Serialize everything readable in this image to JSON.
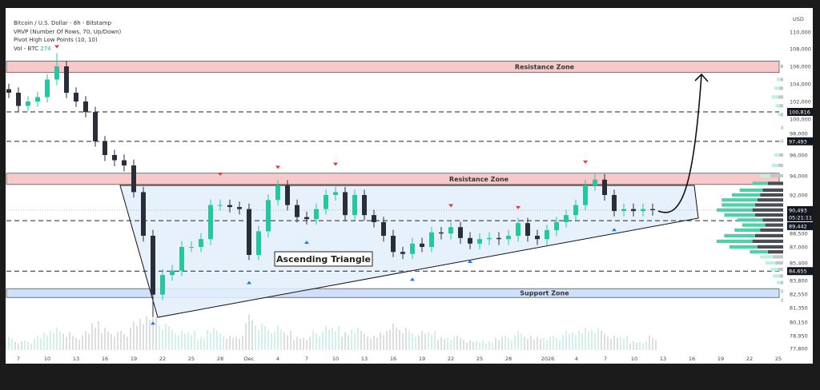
{
  "legend": {
    "symbol": "Bitcoin / U.S. Dollar - 8h - Bitstamp",
    "vrvp": "VRVP (Number Of Rows, 70, Up/Down)",
    "pivots": "Pivot High Low Points (10, 10)",
    "vol_label": "Vol - BTC",
    "vol_value": "274"
  },
  "colors": {
    "up": "#26c6a0",
    "down": "#2a2e39",
    "resistance": "#f8c9c9",
    "support": "#cfe0fa",
    "triangle": "#e3eefc",
    "pivot_high": "#e53935",
    "pivot_low": "#1e7be0"
  },
  "chart_data": {
    "type": "candlestick",
    "currency": "USD",
    "x_ticks": [
      "7",
      "10",
      "13",
      "16",
      "19",
      "22",
      "25",
      "28",
      "Dec",
      "4",
      "7",
      "10",
      "13",
      "16",
      "19",
      "22",
      "25",
      "28",
      "2026",
      "4",
      "7",
      "10",
      "13",
      "16",
      "19",
      "22",
      "25"
    ],
    "y_ticks": [
      "110,000",
      "108,000",
      "106,000",
      "104,000",
      "102,000",
      "100,000",
      "98,000",
      "96,000",
      "94,000",
      "92,000",
      "88,500",
      "87,000",
      "85,400",
      "83,800",
      "82,550",
      "81,350",
      "80,150",
      "78,950",
      "77,800"
    ],
    "ylim": [
      77800,
      110500
    ],
    "start_date": "Nov 6",
    "closes": [
      103000,
      101500,
      102000,
      102500,
      104500,
      106000,
      103000,
      102000,
      100800,
      97500,
      96000,
      95500,
      95000,
      92300,
      88000,
      82500,
      84300,
      84700,
      87000,
      87000,
      87700,
      91000,
      91000,
      90800,
      90600,
      86200,
      88400,
      91500,
      93000,
      91000,
      89800,
      89600,
      90600,
      92000,
      92300,
      90000,
      92000,
      90000,
      89300,
      88000,
      86500,
      86300,
      87300,
      87000,
      88300,
      88200,
      88800,
      87800,
      87300,
      87700,
      87800,
      87700,
      88000,
      89200,
      88000,
      87700,
      88500,
      89300,
      90000,
      91000,
      93000,
      93600,
      92000,
      90400,
      90600,
      90400,
      90600,
      90493
    ],
    "extremes": {
      "high": 107500,
      "low": 80600
    },
    "volume": [
      3,
      2,
      2,
      3,
      4,
      5,
      4,
      3,
      4,
      6,
      5,
      4,
      4,
      6,
      7,
      9,
      6,
      5,
      4,
      4,
      3,
      5,
      4,
      3,
      3,
      8,
      6,
      5,
      5,
      4,
      3,
      3,
      4,
      5,
      5,
      4,
      5,
      4,
      3,
      4,
      6,
      5,
      4,
      4,
      4,
      3,
      3,
      3,
      2,
      2,
      2,
      3,
      3,
      4,
      3,
      3,
      3,
      3,
      4,
      4,
      5,
      5,
      4,
      3,
      3,
      2,
      2,
      3
    ],
    "pivot_highs": [
      {
        "date": "Nov 11",
        "price": 107500
      },
      {
        "date": "Nov 28",
        "price": 93500
      },
      {
        "date": "Dec 4",
        "price": 94200
      },
      {
        "date": "Dec 10",
        "price": 94500
      },
      {
        "date": "Dec 22",
        "price": 90300
      },
      {
        "date": "Dec 29",
        "price": 90100
      },
      {
        "date": "Jan 5",
        "price": 94700
      }
    ],
    "pivot_lows": [
      {
        "date": "Nov 21",
        "price": 80600
      },
      {
        "date": "Dec 1",
        "price": 84200
      },
      {
        "date": "Dec 7",
        "price": 88000
      },
      {
        "date": "Dec 18",
        "price": 84500
      },
      {
        "date": "Dec 24",
        "price": 86200
      },
      {
        "date": "Jan 8",
        "price": 89200
      }
    ],
    "levels": [
      {
        "label": "100,816",
        "price": 100816,
        "style": "dashed"
      },
      {
        "label": "97,493",
        "price": 97493,
        "style": "dashed"
      },
      {
        "label": "89,442",
        "price": 89442,
        "style": "dashed"
      },
      {
        "label": "84,655",
        "price": 84655,
        "style": "dashed"
      }
    ],
    "last_price": {
      "label": "90,493",
      "countdown": "05:21:11",
      "price": 90493
    },
    "zones": [
      {
        "label": "Resistance Zone",
        "from": 105300,
        "to": 106600,
        "kind": "resistance"
      },
      {
        "label": "Resistance Zone",
        "from": 93100,
        "to": 94250,
        "kind": "resistance"
      },
      {
        "label": "Support Zone",
        "from": 82250,
        "to": 83050,
        "kind": "support"
      }
    ],
    "pattern_label": "Ascending Triangle",
    "volume_profile": [
      {
        "price": 106000,
        "up": 1,
        "down": 2
      },
      {
        "price": 104500,
        "up": 3,
        "down": 2
      },
      {
        "price": 103500,
        "up": 4,
        "down": 3
      },
      {
        "price": 102500,
        "up": 5,
        "down": 4
      },
      {
        "price": 101500,
        "up": 3,
        "down": 3
      },
      {
        "price": 100500,
        "up": 2,
        "down": 2
      },
      {
        "price": 99000,
        "up": 1,
        "down": 1
      },
      {
        "price": 97500,
        "up": 2,
        "down": 1
      },
      {
        "price": 96000,
        "up": 4,
        "down": 3
      },
      {
        "price": 95000,
        "up": 5,
        "down": 4
      },
      {
        "price": 94000,
        "up": 8,
        "down": 10
      },
      {
        "price": 93200,
        "up": 12,
        "down": 12
      },
      {
        "price": 92500,
        "up": 18,
        "down": 16
      },
      {
        "price": 92000,
        "up": 22,
        "down": 18
      },
      {
        "price": 91500,
        "up": 28,
        "down": 20
      },
      {
        "price": 91000,
        "up": 26,
        "down": 22
      },
      {
        "price": 90500,
        "up": 28,
        "down": 24
      },
      {
        "price": 90000,
        "up": 24,
        "down": 22
      },
      {
        "price": 89500,
        "up": 20,
        "down": 16
      },
      {
        "price": 89000,
        "up": 18,
        "down": 14
      },
      {
        "price": 88500,
        "up": 20,
        "down": 18
      },
      {
        "price": 88000,
        "up": 24,
        "down": 22
      },
      {
        "price": 87500,
        "up": 28,
        "down": 24
      },
      {
        "price": 87000,
        "up": 22,
        "down": 20
      },
      {
        "price": 86500,
        "up": 14,
        "down": 12
      },
      {
        "price": 86000,
        "up": 10,
        "down": 8
      },
      {
        "price": 85400,
        "up": 8,
        "down": 6
      },
      {
        "price": 84800,
        "up": 6,
        "down": 4
      },
      {
        "price": 84200,
        "up": 5,
        "down": 3
      },
      {
        "price": 83600,
        "up": 3,
        "down": 2
      },
      {
        "price": 82800,
        "up": 2,
        "down": 1
      },
      {
        "price": 82000,
        "up": 1,
        "down": 1
      }
    ]
  }
}
